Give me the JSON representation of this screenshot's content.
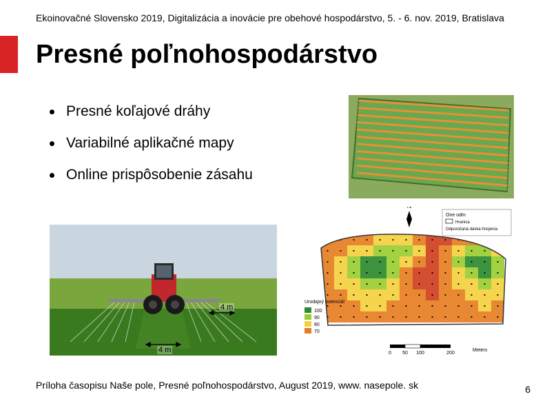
{
  "header": "Ekoinovačné Slovensko 2019, Digitalizácia a inovácie pre obehové hospodárstvo, 5. - 6. nov. 2019, Bratislava",
  "title": "Presné poľnohospodárstvo",
  "bullets": [
    "Presné koľajové dráhy",
    "Variabilné aplikačné mapy",
    "Online prispôsobenie zásahu"
  ],
  "footer": "Príloha časopisu Naše pole, Presné poľnohospodárstvo, August 2019, www. nasepole. sk",
  "page_number": "6",
  "dim_label_1": "4 m",
  "dim_label_2": "4 m",
  "accent_color": "#d82424",
  "field_image": {
    "bg_colors": [
      "#6aa84f",
      "#a8c97a"
    ],
    "track_colors": [
      "#e69138",
      "#6aa84f",
      "#e69138",
      "#6aa84f"
    ],
    "line_count": 22
  },
  "tractor_image": {
    "sky": "#c9d6e0",
    "grass": "#3a7a1e",
    "field": "#7aa63e",
    "tractor_body": "#c1272d",
    "wheel": "#1a1a1a",
    "spray": "#dddddd",
    "overlap_width": 36
  },
  "heatmap_image": {
    "bg": "#ffffff",
    "border": "#333333",
    "compass_label": "N",
    "scale_labels": [
      "0",
      "50",
      "100",
      "200",
      "Meters"
    ],
    "legend_title_1": "One odm",
    "legend_title_2": "Urodajný potenciál",
    "legend_vals": [
      "100",
      "90",
      "80",
      "70"
    ],
    "legend_colors": [
      "#2e8b2e",
      "#9acd32",
      "#f4d03f",
      "#e67e22",
      "#d04020"
    ],
    "cells": [
      [
        3,
        3,
        3,
        3,
        2,
        2,
        2,
        3,
        4,
        4,
        3,
        3,
        2,
        2
      ],
      [
        3,
        3,
        2,
        2,
        1,
        1,
        1,
        2,
        4,
        3,
        2,
        1,
        1,
        2
      ],
      [
        3,
        2,
        1,
        0,
        0,
        1,
        2,
        3,
        4,
        3,
        1,
        0,
        0,
        1
      ],
      [
        3,
        2,
        1,
        0,
        0,
        1,
        3,
        4,
        4,
        3,
        2,
        1,
        0,
        1
      ],
      [
        3,
        2,
        2,
        1,
        1,
        2,
        3,
        4,
        4,
        3,
        2,
        2,
        1,
        2
      ],
      [
        3,
        3,
        2,
        2,
        2,
        2,
        3,
        3,
        4,
        3,
        3,
        2,
        2,
        2
      ],
      [
        3,
        3,
        3,
        2,
        2,
        3,
        3,
        3,
        3,
        3,
        3,
        3,
        2,
        3
      ],
      [
        3,
        3,
        3,
        3,
        3,
        3,
        3,
        3,
        3,
        3,
        3,
        3,
        3,
        3
      ]
    ]
  }
}
